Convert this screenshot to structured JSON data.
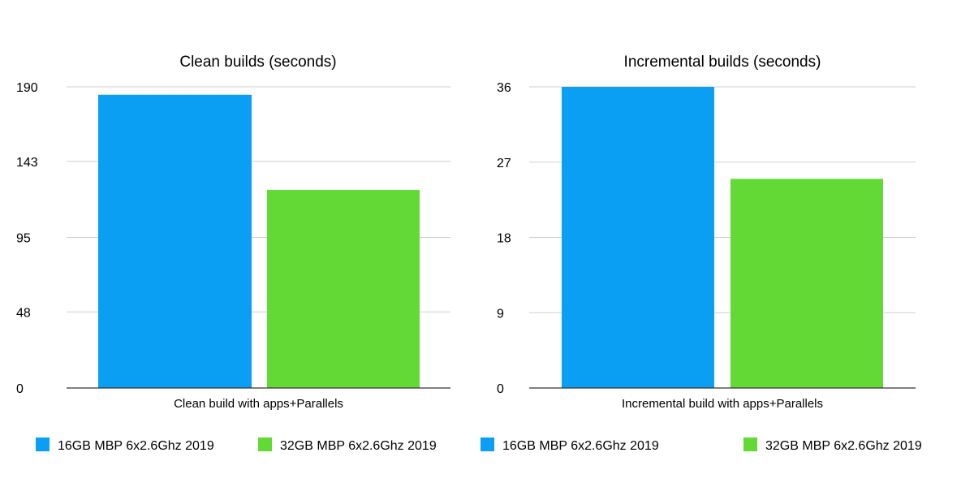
{
  "chart_data": [
    {
      "type": "bar",
      "title": "Clean builds (seconds)",
      "categories": [
        "Clean build with apps+Parallels"
      ],
      "yticks": [
        "0",
        "48",
        "95",
        "143",
        "190"
      ],
      "ylim": [
        0,
        190
      ],
      "grid": true,
      "legend_position": "bottom",
      "series": [
        {
          "name": "16GB MBP 6x2.6Ghz 2019",
          "color": "#0a9ff3",
          "values": [
            185
          ]
        },
        {
          "name": "32GB MBP 6x2.6Ghz 2019",
          "color": "#62d935",
          "values": [
            125
          ]
        }
      ]
    },
    {
      "type": "bar",
      "title": "Incremental builds (seconds)",
      "categories": [
        "Incremental build with apps+Parallels"
      ],
      "yticks": [
        "0",
        "9",
        "18",
        "27",
        "36"
      ],
      "ylim": [
        0,
        36
      ],
      "grid": true,
      "legend_position": "bottom",
      "series": [
        {
          "name": "16GB MBP 6x2.6Ghz 2019",
          "color": "#0a9ff3",
          "values": [
            36
          ]
        },
        {
          "name": "32GB MBP 6x2.6Ghz 2019",
          "color": "#62d935",
          "values": [
            25
          ]
        }
      ]
    }
  ]
}
